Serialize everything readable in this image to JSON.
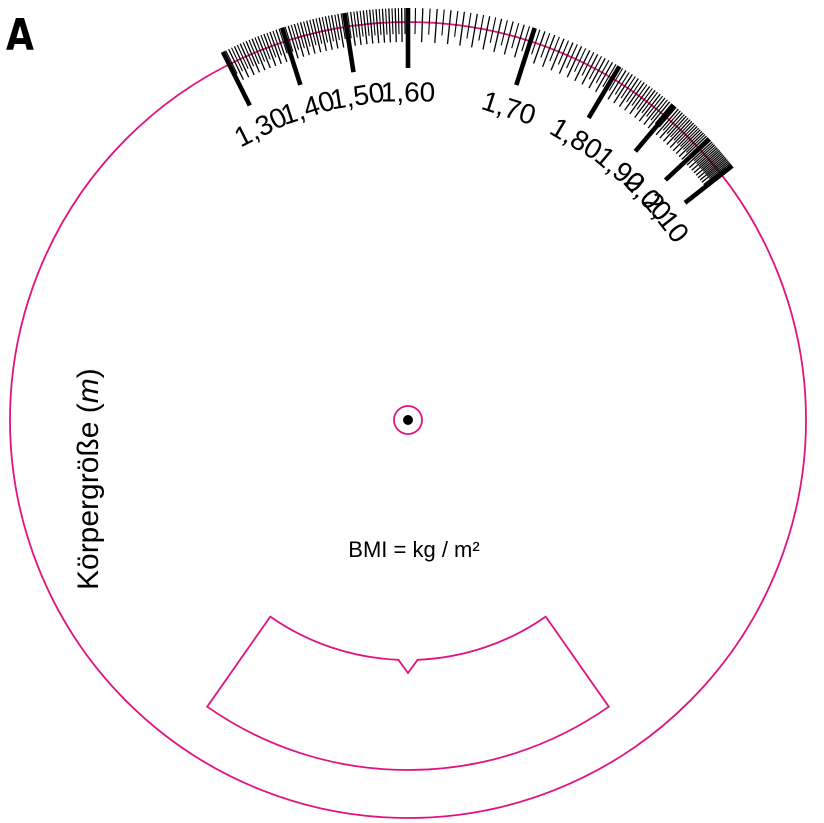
{
  "panel_letter": "A",
  "scale": {
    "start_value": 1.3,
    "end_value": 2.1,
    "labels": [
      "1,30",
      "1,40",
      "1,50",
      "1,60",
      "1,70",
      "1,80",
      "1,90",
      "2,00",
      "2,10"
    ]
  },
  "axis_label_main": "Körpergröße (",
  "axis_label_unit": "m",
  "axis_label_close": ")",
  "formula": "BMI = kg / m²",
  "colors": {
    "outline": "#e0147f",
    "ink": "#000000"
  }
}
